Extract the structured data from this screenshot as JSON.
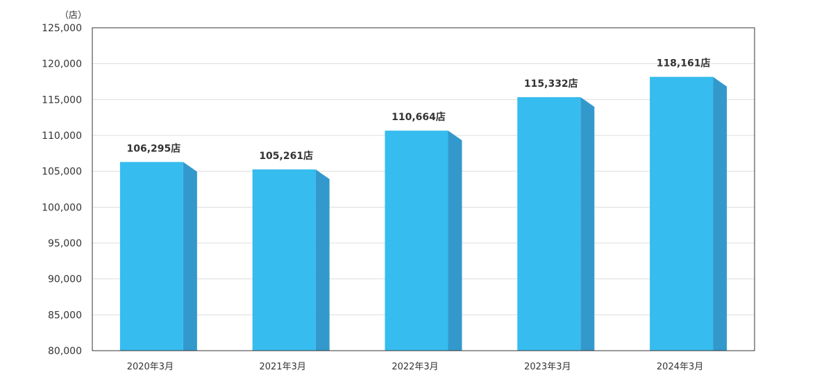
{
  "chart_data": {
    "type": "bar",
    "y_unit_label": "（店）",
    "categories": [
      "2020年3月",
      "2021年3月",
      "2022年3月",
      "2023年3月",
      "2024年3月"
    ],
    "values": [
      106295,
      105261,
      110664,
      115332,
      118161
    ],
    "data_labels": [
      "106,295店",
      "105,261店",
      "110,664店",
      "115,332店",
      "118,161店"
    ],
    "ylim": [
      80000,
      125000
    ],
    "yticks": [
      80000,
      85000,
      90000,
      95000,
      100000,
      105000,
      110000,
      115000,
      120000,
      125000
    ],
    "ytick_labels": [
      "80,000",
      "85,000",
      "90,000",
      "95,000",
      "100,000",
      "105,000",
      "110,000",
      "115,000",
      "120,000",
      "125,000"
    ],
    "grid": true,
    "colors": {
      "bar_front": "#36bcee",
      "bar_side": "#3399cc",
      "grid": "#dddddd",
      "frame": "#333333"
    }
  }
}
